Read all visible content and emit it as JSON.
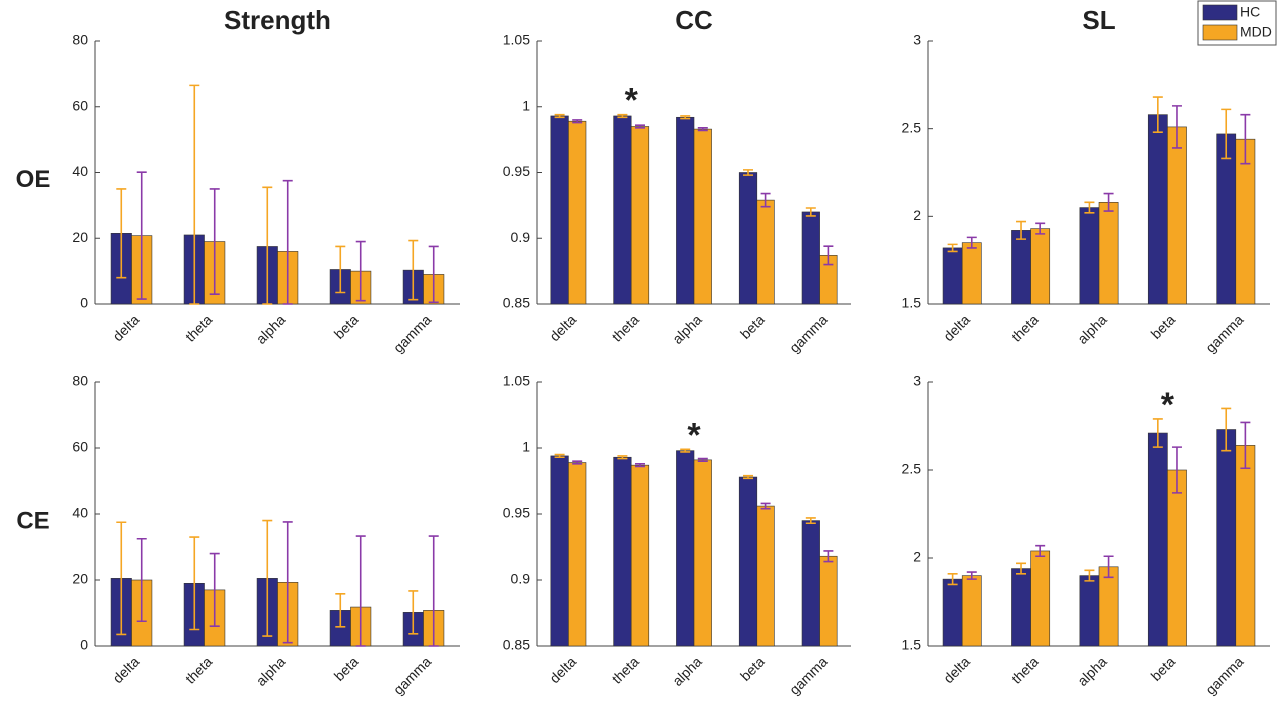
{
  "chart_data": [
    {
      "type": "bar",
      "title": "Strength",
      "row_label": "OE",
      "categories": [
        "delta",
        "theta",
        "alpha",
        "beta",
        "gamma"
      ],
      "series": [
        {
          "color": "#2e2d82",
          "error_color": "#f5a623",
          "values": [
            21.5,
            21,
            17.5,
            10.5,
            10.3
          ],
          "errors": [
            13.5,
            45.5,
            18,
            7,
            9
          ]
        },
        {
          "color": "#f5a623",
          "error_color": "#8a3aa8",
          "values": [
            20.8,
            19,
            16,
            10,
            9
          ],
          "errors": [
            19.3,
            16,
            21.5,
            9,
            8.5
          ]
        }
      ],
      "ylim": [
        0,
        80
      ],
      "yticks": [
        0,
        20,
        40,
        60,
        80
      ]
    },
    {
      "type": "bar",
      "title": "CC",
      "categories": [
        "delta",
        "theta",
        "alpha",
        "beta",
        "gamma"
      ],
      "series": [
        {
          "color": "#2e2d82",
          "error_color": "#f5a623",
          "values": [
            0.993,
            0.993,
            0.992,
            0.95,
            0.92
          ],
          "errors": [
            0.001,
            0.001,
            0.001,
            0.002,
            0.003
          ]
        },
        {
          "color": "#f5a623",
          "error_color": "#8a3aa8",
          "values": [
            0.989,
            0.985,
            0.983,
            0.929,
            0.887
          ],
          "errors": [
            0.001,
            0.001,
            0.001,
            0.005,
            0.007
          ]
        }
      ],
      "ylim": [
        0.85,
        1.05
      ],
      "yticks": [
        0.85,
        0.9,
        0.95,
        1,
        1.05
      ],
      "annotation": {
        "text": "*",
        "category": "theta"
      }
    },
    {
      "type": "bar",
      "title": "SL",
      "categories": [
        "delta",
        "theta",
        "alpha",
        "beta",
        "gamma"
      ],
      "series": [
        {
          "name": "HC",
          "color": "#2e2d82",
          "error_color": "#f5a623",
          "values": [
            1.82,
            1.92,
            2.05,
            2.58,
            2.47
          ],
          "errors": [
            0.02,
            0.05,
            0.03,
            0.1,
            0.14
          ]
        },
        {
          "name": "MDD",
          "color": "#f5a623",
          "error_color": "#8a3aa8",
          "values": [
            1.85,
            1.93,
            2.08,
            2.51,
            2.44
          ],
          "errors": [
            0.03,
            0.03,
            0.05,
            0.12,
            0.14
          ]
        }
      ],
      "ylim": [
        1.5,
        3
      ],
      "yticks": [
        1.5,
        2,
        2.5,
        3
      ]
    },
    {
      "type": "bar",
      "row_label": "CE",
      "categories": [
        "delta",
        "theta",
        "alpha",
        "beta",
        "gamma"
      ],
      "series": [
        {
          "color": "#2e2d82",
          "error_color": "#f5a623",
          "values": [
            20.5,
            19,
            20.5,
            10.8,
            10.2
          ],
          "errors": [
            17,
            14,
            17.5,
            5,
            6.5
          ]
        },
        {
          "color": "#f5a623",
          "error_color": "#8a3aa8",
          "values": [
            20,
            17,
            19.3,
            11.8,
            10.8
          ],
          "errors": [
            12.5,
            11,
            18.3,
            21.5,
            22.5
          ]
        }
      ],
      "ylim": [
        0,
        80
      ],
      "yticks": [
        0,
        20,
        40,
        60,
        80
      ]
    },
    {
      "type": "bar",
      "categories": [
        "delta",
        "theta",
        "alpha",
        "beta",
        "gamma"
      ],
      "series": [
        {
          "color": "#2e2d82",
          "error_color": "#f5a623",
          "values": [
            0.994,
            0.993,
            0.998,
            0.978,
            0.945
          ],
          "errors": [
            0.001,
            0.001,
            0.001,
            0.001,
            0.002
          ]
        },
        {
          "color": "#f5a623",
          "error_color": "#8a3aa8",
          "values": [
            0.989,
            0.987,
            0.991,
            0.956,
            0.918
          ],
          "errors": [
            0.001,
            0.001,
            0.001,
            0.002,
            0.004
          ]
        }
      ],
      "ylim": [
        0.85,
        1.05
      ],
      "yticks": [
        0.85,
        0.9,
        0.95,
        1,
        1.05
      ],
      "annotation": {
        "text": "*",
        "category": "alpha"
      }
    },
    {
      "type": "bar",
      "categories": [
        "delta",
        "theta",
        "alpha",
        "beta",
        "gamma"
      ],
      "series": [
        {
          "color": "#2e2d82",
          "error_color": "#f5a623",
          "values": [
            1.88,
            1.94,
            1.9,
            2.71,
            2.73
          ],
          "errors": [
            0.03,
            0.03,
            0.03,
            0.08,
            0.12
          ]
        },
        {
          "color": "#f5a623",
          "error_color": "#8a3aa8",
          "values": [
            1.9,
            2.04,
            1.95,
            2.5,
            2.64
          ],
          "errors": [
            0.02,
            0.03,
            0.06,
            0.13,
            0.13
          ]
        }
      ],
      "ylim": [
        1.5,
        3
      ],
      "yticks": [
        1.5,
        2,
        2.5,
        3
      ],
      "annotation": {
        "text": "*",
        "category": "beta"
      }
    }
  ]
}
